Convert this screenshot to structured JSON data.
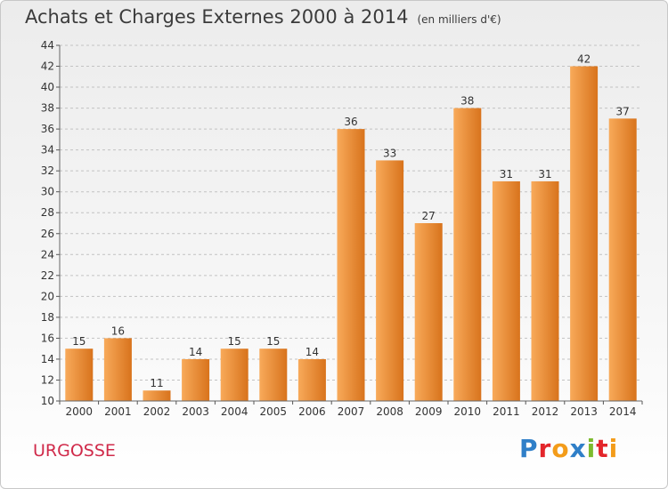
{
  "title": "Achats et Charges Externes 2000 à 2014",
  "subtitle": "(en milliers d'€)",
  "town": "URGOSSE",
  "logo": {
    "text": "Proxiti",
    "letters": [
      {
        "ch": "P",
        "color": "#2f7fc8"
      },
      {
        "ch": "r",
        "color": "#e3262b"
      },
      {
        "ch": "o",
        "color": "#f39c1a"
      },
      {
        "ch": "x",
        "color": "#2f7fc8"
      },
      {
        "ch": "i",
        "color": "#7dbb2e"
      },
      {
        "ch": "t",
        "color": "#e3262b"
      },
      {
        "ch": "i",
        "color": "#f39c1a"
      }
    ]
  },
  "colors": {
    "bar_light": "#f8aa5a",
    "bar_dark": "#d8731c",
    "grid": "#c2c2c2",
    "text": "#333333"
  },
  "chart_data": {
    "type": "bar",
    "categories": [
      "2000",
      "2001",
      "2002",
      "2003",
      "2004",
      "2005",
      "2006",
      "2007",
      "2008",
      "2009",
      "2010",
      "2011",
      "2012",
      "2013",
      "2014"
    ],
    "values": [
      15,
      16,
      11,
      14,
      15,
      15,
      14,
      36,
      33,
      27,
      38,
      31,
      31,
      42,
      37
    ],
    "ylim": [
      10,
      44
    ],
    "yticks": [
      10,
      12,
      14,
      16,
      18,
      20,
      22,
      24,
      26,
      28,
      30,
      32,
      34,
      36,
      38,
      40,
      42,
      44
    ],
    "grid": "dashed horizontal",
    "legend": "none"
  }
}
